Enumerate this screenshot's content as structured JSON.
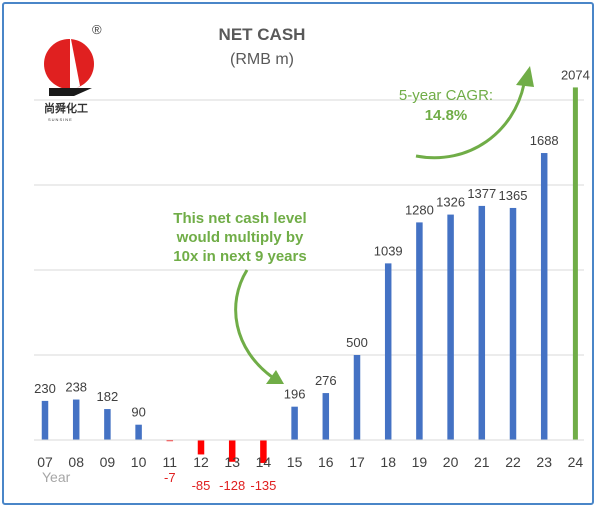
{
  "logo": {
    "chinese": "尚舜化工",
    "latin": "SUNSINE",
    "registered": "®"
  },
  "chart_data": {
    "type": "bar",
    "title": "NET CASH",
    "subtitle": "(RMB m)",
    "xlabel": "Year",
    "categories": [
      "07",
      "08",
      "09",
      "10",
      "11",
      "12",
      "13",
      "14",
      "15",
      "16",
      "17",
      "18",
      "19",
      "20",
      "21",
      "22",
      "23",
      "24"
    ],
    "values": [
      230,
      238,
      182,
      90,
      -7,
      -85,
      -128,
      -135,
      196,
      276,
      500,
      1039,
      1280,
      1326,
      1377,
      1365,
      1688,
      2074
    ],
    "ylim": [
      -150,
      2150
    ],
    "grid": true,
    "colors": {
      "positive": "#4472c4",
      "negative": "#ff0000",
      "highlight": "#70ad47"
    },
    "highlight_category": "24",
    "annotations": [
      {
        "lines": [
          "This net cash level",
          "would multiply by",
          "10x in next 9 years"
        ]
      },
      {
        "lines": [
          "5-year CAGR:",
          "14.8%"
        ]
      }
    ]
  }
}
